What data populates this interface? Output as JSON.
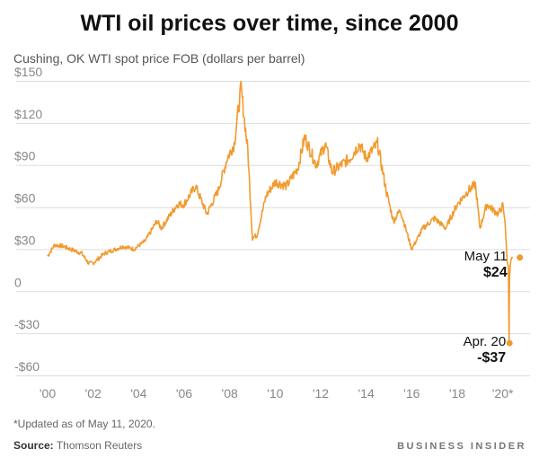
{
  "title": "WTI oil prices over time, since 2000",
  "subtitle": "Cushing, OK WTI spot price FOB (dollars per barrel)",
  "footnote": "*Updated as of May 11, 2020.",
  "source_label": "Source:",
  "source_value": "Thomson Reuters",
  "brand": "BUSINESS INSIDER",
  "colors": {
    "line": "#f29a2e",
    "grid": "#dddddd",
    "axis_text": "#888888",
    "label_text": "#111111"
  },
  "chart_data": {
    "type": "line",
    "title": "WTI oil prices over time, since 2000",
    "ylabel": "Cushing, OK WTI spot price FOB (dollars per barrel)",
    "xlabel": "",
    "xlim": [
      2000,
      2021.2
    ],
    "ylim": [
      -60,
      150
    ],
    "y_ticks": [
      150,
      120,
      90,
      60,
      30,
      0,
      -30,
      -60
    ],
    "y_tick_labels": [
      "$150",
      "$120",
      "$90",
      "$60",
      "$30",
      "0",
      "-$30",
      "-$60"
    ],
    "x_ticks": [
      2000,
      2002,
      2004,
      2006,
      2008,
      2010,
      2012,
      2014,
      2016,
      2018,
      2020
    ],
    "x_tick_labels": [
      "'00",
      "'02",
      "'04",
      "'06",
      "'08",
      "'10",
      "'12",
      "'14",
      "'16",
      "'18",
      "'20*"
    ],
    "grid": true,
    "series": [
      {
        "name": "WTI spot price",
        "x": [
          2000.0,
          2000.3,
          2000.7,
          2001.0,
          2001.5,
          2001.8,
          2002.0,
          2002.5,
          2003.0,
          2003.3,
          2003.8,
          2004.3,
          2004.8,
          2005.0,
          2005.7,
          2006.0,
          2006.5,
          2007.0,
          2007.5,
          2007.9,
          2008.2,
          2008.5,
          2008.8,
          2009.0,
          2009.2,
          2009.6,
          2010.0,
          2010.5,
          2011.0,
          2011.3,
          2011.8,
          2012.2,
          2012.5,
          2012.9,
          2013.3,
          2013.7,
          2014.0,
          2014.5,
          2014.9,
          2015.2,
          2015.5,
          2016.0,
          2016.5,
          2017.0,
          2017.5,
          2018.0,
          2018.5,
          2018.8,
          2019.0,
          2019.3,
          2019.8,
          2020.0,
          2020.1,
          2020.2,
          2020.25,
          2020.28,
          2020.3,
          2020.33,
          2020.36,
          2020.4,
          2020.45
        ],
        "values": [
          25,
          33,
          32,
          30,
          27,
          20,
          20,
          27,
          30,
          32,
          30,
          36,
          50,
          45,
          62,
          62,
          75,
          55,
          72,
          95,
          105,
          145,
          100,
          38,
          40,
          68,
          78,
          75,
          88,
          110,
          90,
          105,
          85,
          90,
          95,
          105,
          95,
          105,
          70,
          50,
          58,
          30,
          45,
          52,
          45,
          62,
          72,
          76,
          45,
          62,
          55,
          61,
          50,
          20,
          18,
          -37,
          10,
          18,
          22,
          24,
          24
        ]
      }
    ],
    "annotations": [
      {
        "label": "May 11",
        "value_label": "$24",
        "x": 2020.36,
        "y": 24
      },
      {
        "label": "Apr. 20",
        "value_label": "-$37",
        "x": 2020.3,
        "y": -37
      }
    ]
  }
}
